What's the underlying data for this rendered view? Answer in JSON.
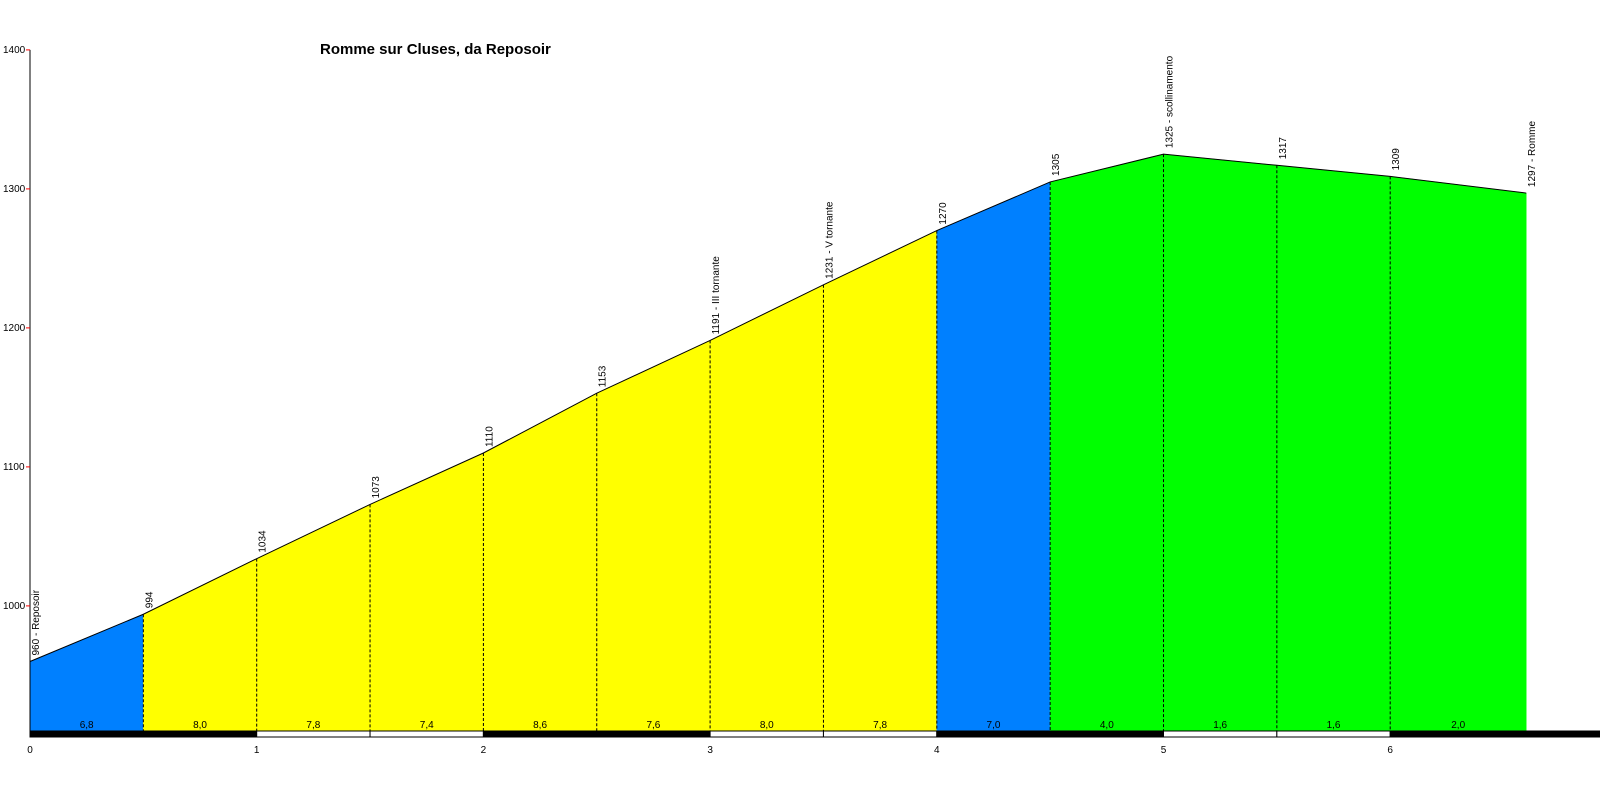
{
  "chart_data": {
    "type": "area",
    "title": "Romme sur Cluses, da Reposoir",
    "xlabel": "",
    "ylabel": "",
    "xlim": [
      0,
      6.95
    ],
    "ylim": [
      910,
      1400
    ],
    "y_ticks": [
      1000,
      1100,
      1200,
      1300,
      1400
    ],
    "x_ticks": [
      0,
      1,
      2,
      3,
      4,
      5,
      6
    ],
    "profile": [
      {
        "km": 0.0,
        "alt": 960,
        "label": "960 - Reposoir"
      },
      {
        "km": 0.5,
        "alt": 994,
        "label": "994"
      },
      {
        "km": 1.0,
        "alt": 1034,
        "label": "1034"
      },
      {
        "km": 1.5,
        "alt": 1073,
        "label": "1073"
      },
      {
        "km": 2.0,
        "alt": 1110,
        "label": "1110"
      },
      {
        "km": 2.5,
        "alt": 1153,
        "label": "1153"
      },
      {
        "km": 3.0,
        "alt": 1191,
        "label": "1191 - III tornante"
      },
      {
        "km": 3.5,
        "alt": 1231,
        "label": "1231 - V tornante"
      },
      {
        "km": 4.0,
        "alt": 1270,
        "label": "1270"
      },
      {
        "km": 4.5,
        "alt": 1305,
        "label": "1305"
      },
      {
        "km": 5.0,
        "alt": 1325,
        "label": "1325 - scollinamento"
      },
      {
        "km": 5.5,
        "alt": 1317,
        "label": "1317"
      },
      {
        "km": 6.0,
        "alt": 1309,
        "label": "1309"
      },
      {
        "km": 6.6,
        "alt": 1297,
        "label": "1297 - Romme"
      }
    ],
    "segments": [
      {
        "grade": "6,8",
        "color": "#0080ff"
      },
      {
        "grade": "8,0",
        "color": "#ffff00"
      },
      {
        "grade": "7,8",
        "color": "#ffff00"
      },
      {
        "grade": "7,4",
        "color": "#ffff00"
      },
      {
        "grade": "8,6",
        "color": "#ffff00"
      },
      {
        "grade": "7,6",
        "color": "#ffff00"
      },
      {
        "grade": "8,0",
        "color": "#ffff00"
      },
      {
        "grade": "7,8",
        "color": "#ffff00"
      },
      {
        "grade": "7,0",
        "color": "#0080ff"
      },
      {
        "grade": "4,0",
        "color": "#00ff00"
      },
      {
        "grade": "1,6",
        "color": "#00ff00"
      },
      {
        "grade": "1,6",
        "color": "#00ff00"
      },
      {
        "grade": "2,0",
        "color": "#00ff00"
      }
    ],
    "colors": {
      "axis": "#000000",
      "tick_mark": "#ff0000",
      "outline": "#000000"
    }
  }
}
